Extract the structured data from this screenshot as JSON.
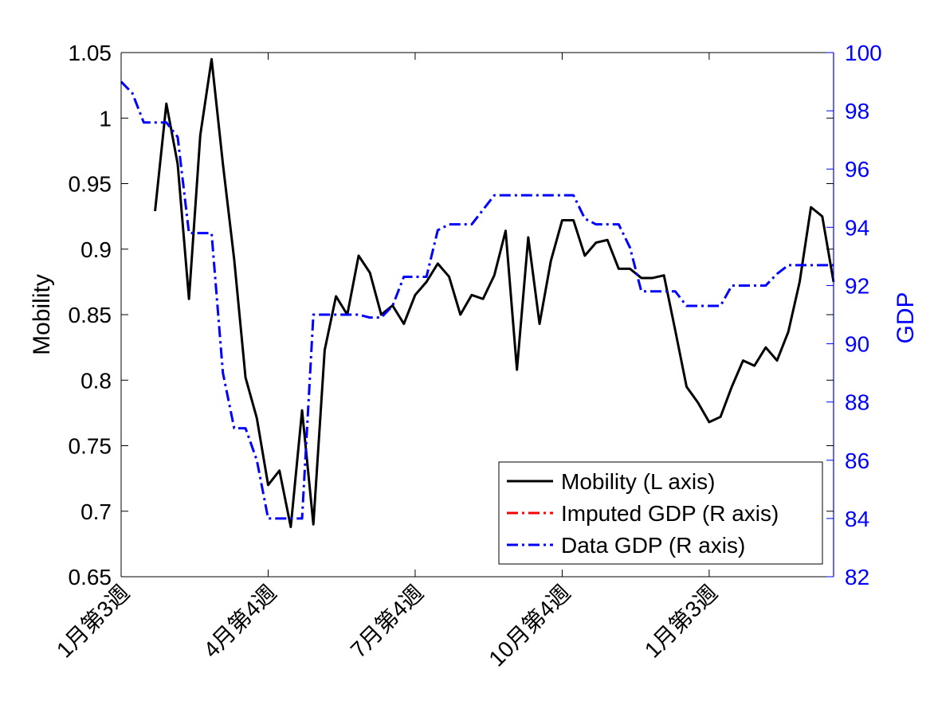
{
  "chart_data": {
    "type": "line",
    "xlabel": "",
    "ylabel_left": "Mobility",
    "ylabel_right": "GDP",
    "ylim_left": [
      0.65,
      1.05
    ],
    "ylim_right": [
      82,
      100
    ],
    "y_ticks_left": [
      "0.65",
      "0.7",
      "0.75",
      "0.8",
      "0.85",
      "0.9",
      "0.95",
      "1",
      "1.05"
    ],
    "y_ticks_right": [
      "82",
      "84",
      "86",
      "88",
      "90",
      "92",
      "94",
      "96",
      "98",
      "100"
    ],
    "x_ticks": [
      "1月第3週",
      "4月第4週",
      "7月第4週",
      "10月第4週",
      "1月第3週"
    ],
    "x_tick_index": [
      0,
      13,
      26,
      39,
      52
    ],
    "x_range": [
      0,
      63
    ],
    "grid": false,
    "legend_position": "bottom-right",
    "series": [
      {
        "name": "Mobility (L axis)",
        "axis": "left",
        "color": "#000000",
        "style": "solid",
        "x": [
          3,
          4,
          5,
          6,
          7,
          8,
          9,
          10,
          11,
          12,
          13,
          14,
          15,
          16,
          17,
          18,
          19,
          20,
          21,
          22,
          23,
          24,
          25,
          26,
          27,
          28,
          29,
          30,
          31,
          32,
          33,
          34,
          35,
          36,
          37,
          38,
          39,
          40,
          41,
          42,
          43,
          44,
          45,
          46,
          47,
          48,
          49,
          50,
          51,
          52,
          53,
          54,
          55,
          56,
          57,
          58,
          59,
          60,
          61,
          62,
          63
        ],
        "values": [
          0.929,
          1.011,
          0.965,
          0.862,
          0.987,
          1.045,
          0.965,
          0.892,
          0.802,
          0.771,
          0.72,
          0.731,
          0.688,
          0.777,
          0.69,
          0.823,
          0.864,
          0.85,
          0.895,
          0.882,
          0.85,
          0.857,
          0.843,
          0.865,
          0.875,
          0.889,
          0.879,
          0.85,
          0.865,
          0.862,
          0.88,
          0.914,
          0.808,
          0.909,
          0.843,
          0.891,
          0.922,
          0.922,
          0.895,
          0.905,
          0.907,
          0.885,
          0.885,
          0.878,
          0.878,
          0.88,
          0.838,
          0.795,
          0.783,
          0.768,
          0.772,
          0.795,
          0.815,
          0.811,
          0.825,
          0.815,
          0.837,
          0.875,
          0.932,
          0.925,
          0.875
        ]
      },
      {
        "name": "Imputed GDP (R axis)",
        "axis": "right",
        "color": "#ff0000",
        "style": "dashdot",
        "x": [],
        "values": []
      },
      {
        "name": "Data GDP (R axis)",
        "axis": "right",
        "color": "#0000ff",
        "style": "dashdot",
        "x": [
          0,
          1,
          2,
          3,
          4,
          5,
          6,
          7,
          8,
          9,
          10,
          11,
          12,
          13,
          14,
          15,
          16,
          17,
          18,
          19,
          20,
          21,
          22,
          23,
          24,
          25,
          26,
          27,
          28,
          29,
          30,
          31,
          32,
          33,
          34,
          35,
          36,
          37,
          38,
          39,
          40,
          41,
          42,
          43,
          44,
          45,
          46,
          47,
          48,
          49,
          50,
          51,
          52,
          53,
          54,
          55,
          56,
          57,
          58,
          59,
          60,
          61,
          62,
          63
        ],
        "values": [
          99.0,
          98.6,
          97.6,
          97.6,
          97.6,
          97.1,
          93.8,
          93.8,
          93.8,
          89.0,
          87.1,
          87.1,
          86.0,
          84.0,
          84.0,
          84.0,
          84.0,
          91.0,
          91.0,
          91.0,
          91.0,
          91.0,
          90.9,
          90.9,
          91.3,
          92.3,
          92.3,
          92.3,
          93.9,
          94.1,
          94.1,
          94.1,
          94.6,
          95.1,
          95.1,
          95.1,
          95.1,
          95.1,
          95.1,
          95.1,
          95.1,
          94.3,
          94.1,
          94.1,
          94.1,
          93.3,
          91.8,
          91.8,
          91.8,
          91.8,
          91.3,
          91.3,
          91.3,
          91.3,
          92.0,
          92.0,
          92.0,
          92.0,
          92.4,
          92.7,
          92.7,
          92.7,
          92.7,
          92.7
        ]
      }
    ]
  }
}
